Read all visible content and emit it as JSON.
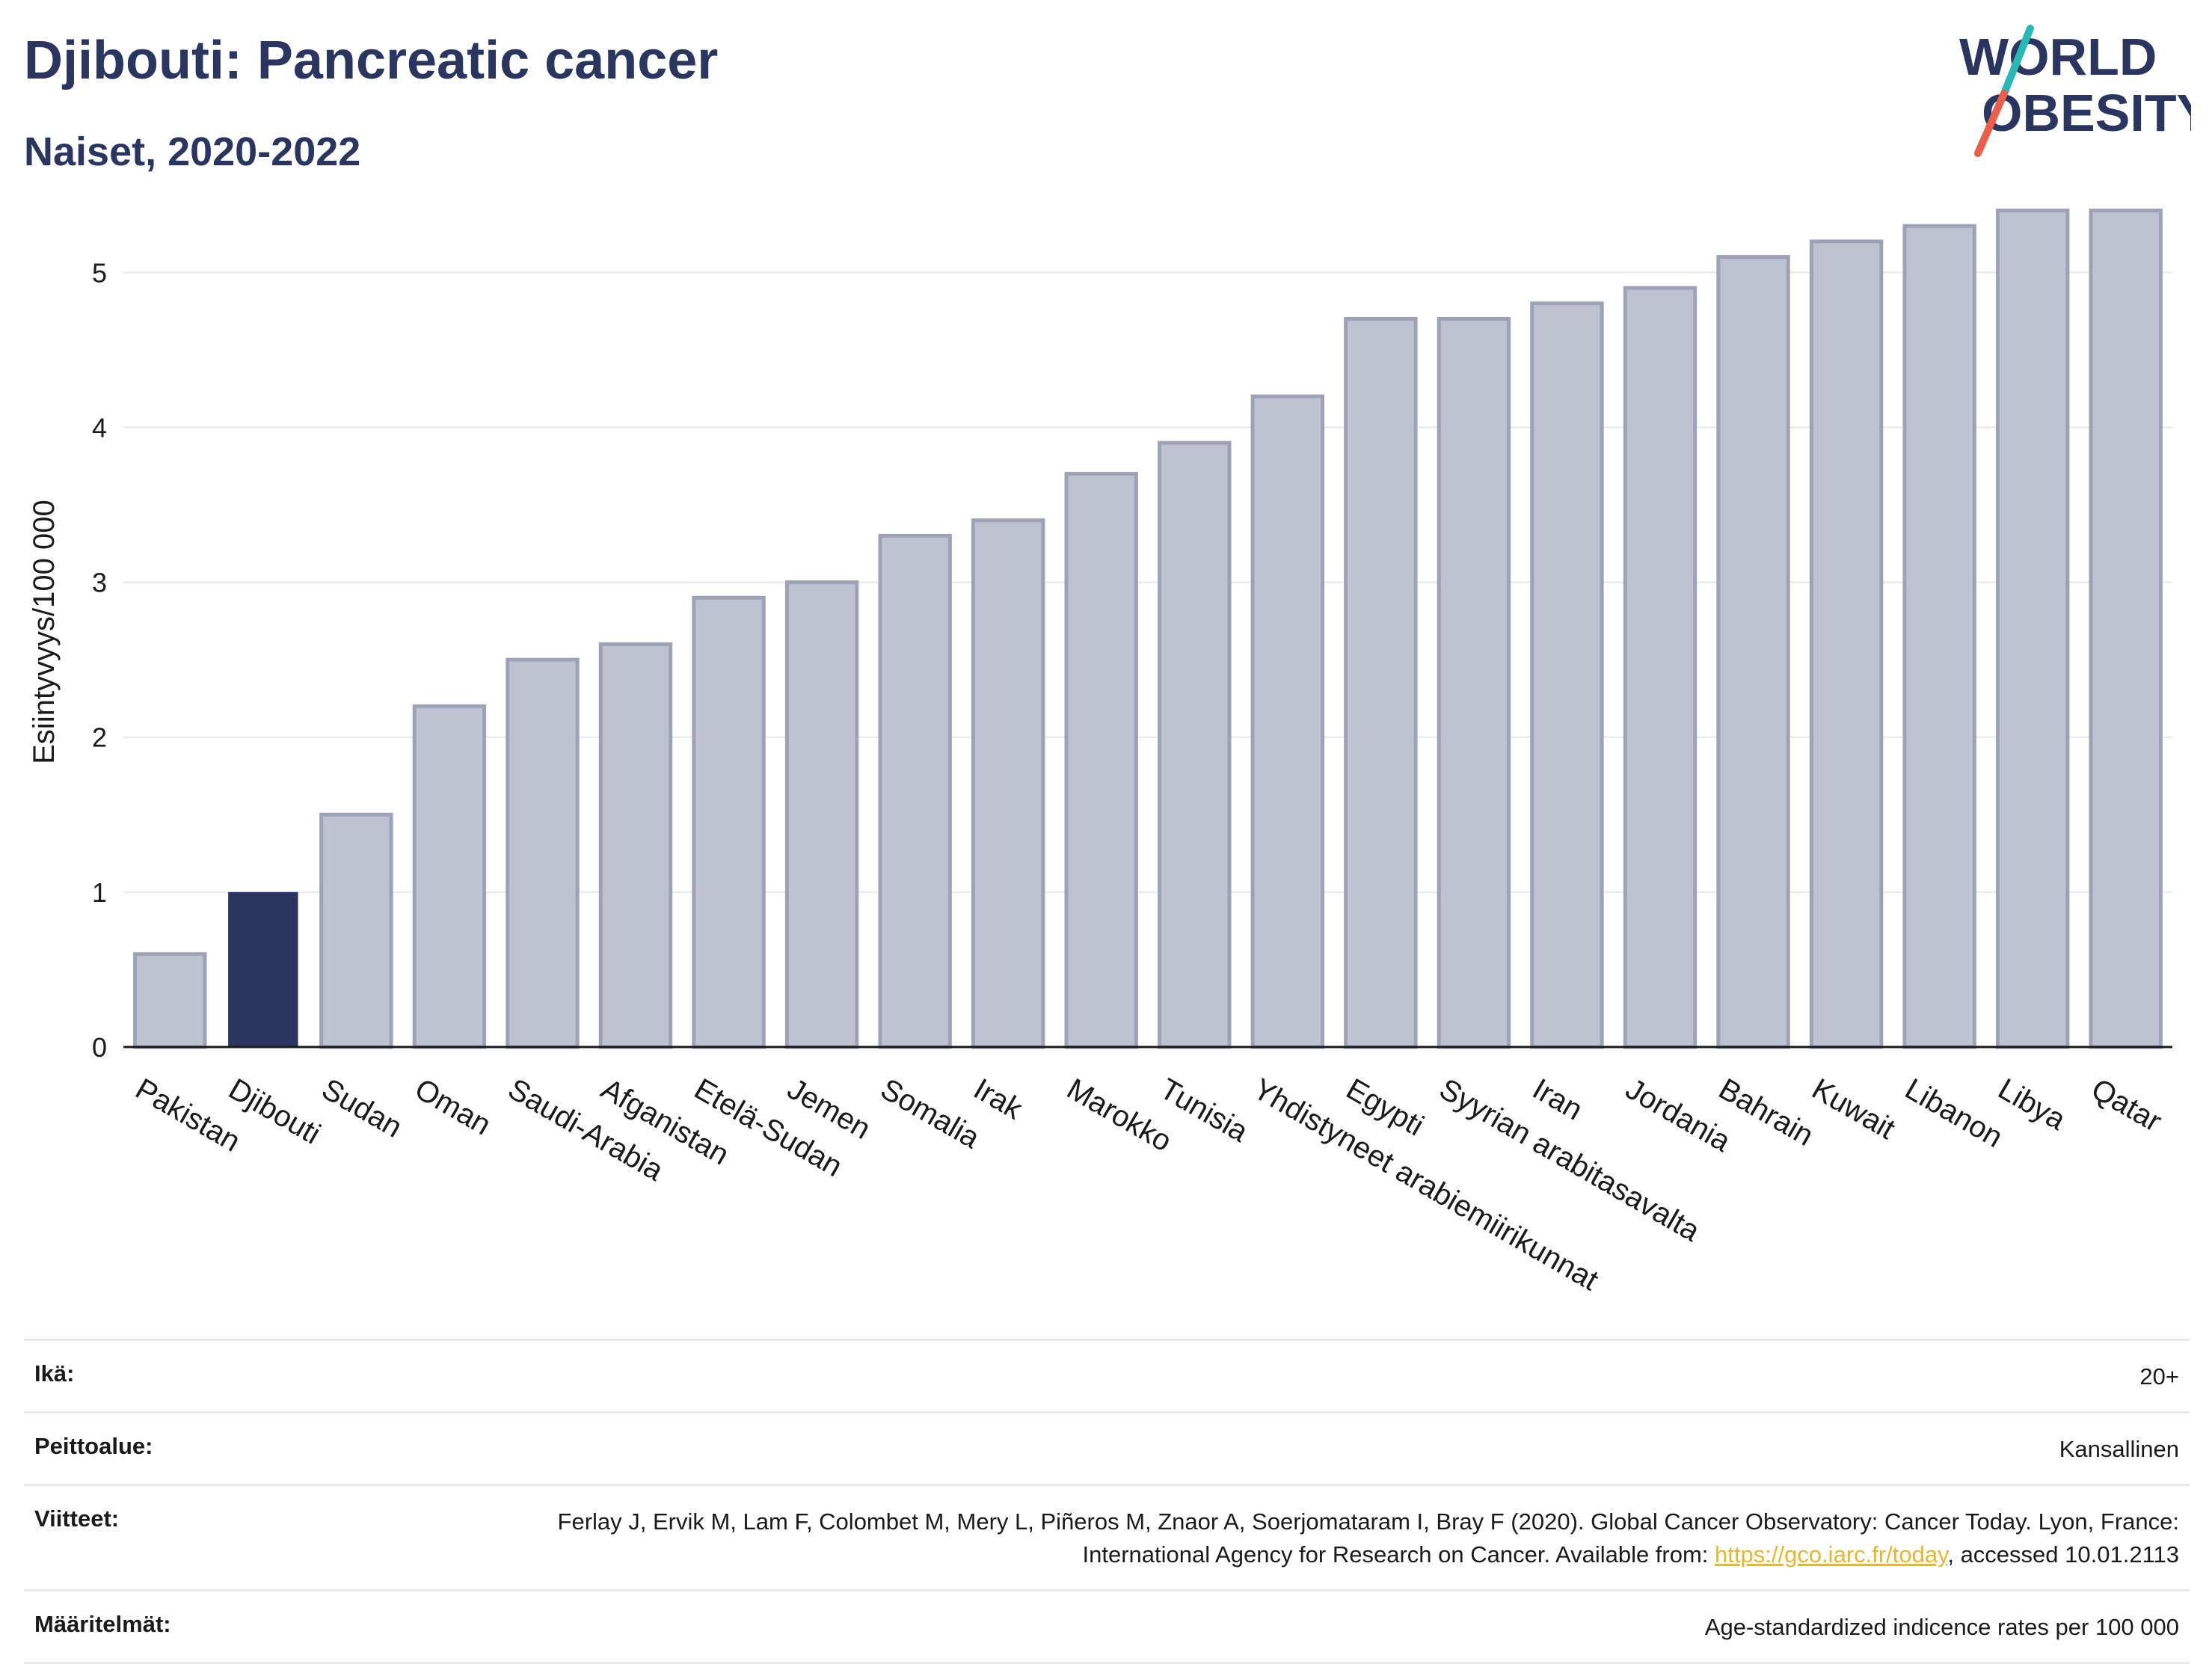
{
  "header": {
    "title": "Djibouti: Pancreatic cancer",
    "subtitle": "Naiset, 2020-2022"
  },
  "logo": {
    "line1": "WORLD",
    "line2": "OBESITY",
    "colors": {
      "text": "#2a3560",
      "slash_teal": "#2bb7b3",
      "slash_red": "#e8604c"
    }
  },
  "colors": {
    "bar_default": "#bfc2d0",
    "bar_default_stroke": "#9da2b8",
    "bar_highlight": "#2a3560",
    "grid": "#e6e8ee",
    "axis": "#1a1a1a"
  },
  "chart_data": {
    "type": "bar",
    "ylabel": "Esiintyvyys/100 000",
    "ylim": [
      0,
      5.6
    ],
    "yticks": [
      0,
      1,
      2,
      3,
      4,
      5
    ],
    "grid": true,
    "highlight": "Djibouti",
    "categories": [
      "Pakistan",
      "Djibouti",
      "Sudan",
      "Oman",
      "Saudi-Arabia",
      "Afganistan",
      "Etelä-Sudan",
      "Jemen",
      "Somalia",
      "Irak",
      "Marokko",
      "Tunisia",
      "Yhdistyneet arabiemiirikunnat",
      "Egypti",
      "Syyrian arabitasavalta",
      "Iran",
      "Jordania",
      "Bahrain",
      "Kuwait",
      "Libanon",
      "Libya",
      "Qatar"
    ],
    "values": [
      0.6,
      1.0,
      1.5,
      2.2,
      2.5,
      2.6,
      2.9,
      3.0,
      3.3,
      3.4,
      3.7,
      3.9,
      4.2,
      4.7,
      4.7,
      4.8,
      4.9,
      5.1,
      5.2,
      5.3,
      5.4,
      5.4
    ]
  },
  "meta": {
    "age_label": "Ikä:",
    "age_value": "20+",
    "coverage_label": "Peittoalue:",
    "coverage_value": "Kansallinen",
    "refs_label": "Viitteet:",
    "refs_text_before": "Ferlay J, Ervik M, Lam F, Colombet M, Mery L, Piñeros M, Znaor A, Soerjomataram I, Bray F (2020). Global Cancer Observatory: Cancer Today. Lyon, France: International Agency for Research on Cancer. Available from: ",
    "refs_link": "https://gco.iarc.fr/today",
    "refs_text_after": ", accessed 10.01.2113",
    "defs_label": "Määritelmät:",
    "defs_value": "Age-standardized indicence rates per 100 000"
  }
}
